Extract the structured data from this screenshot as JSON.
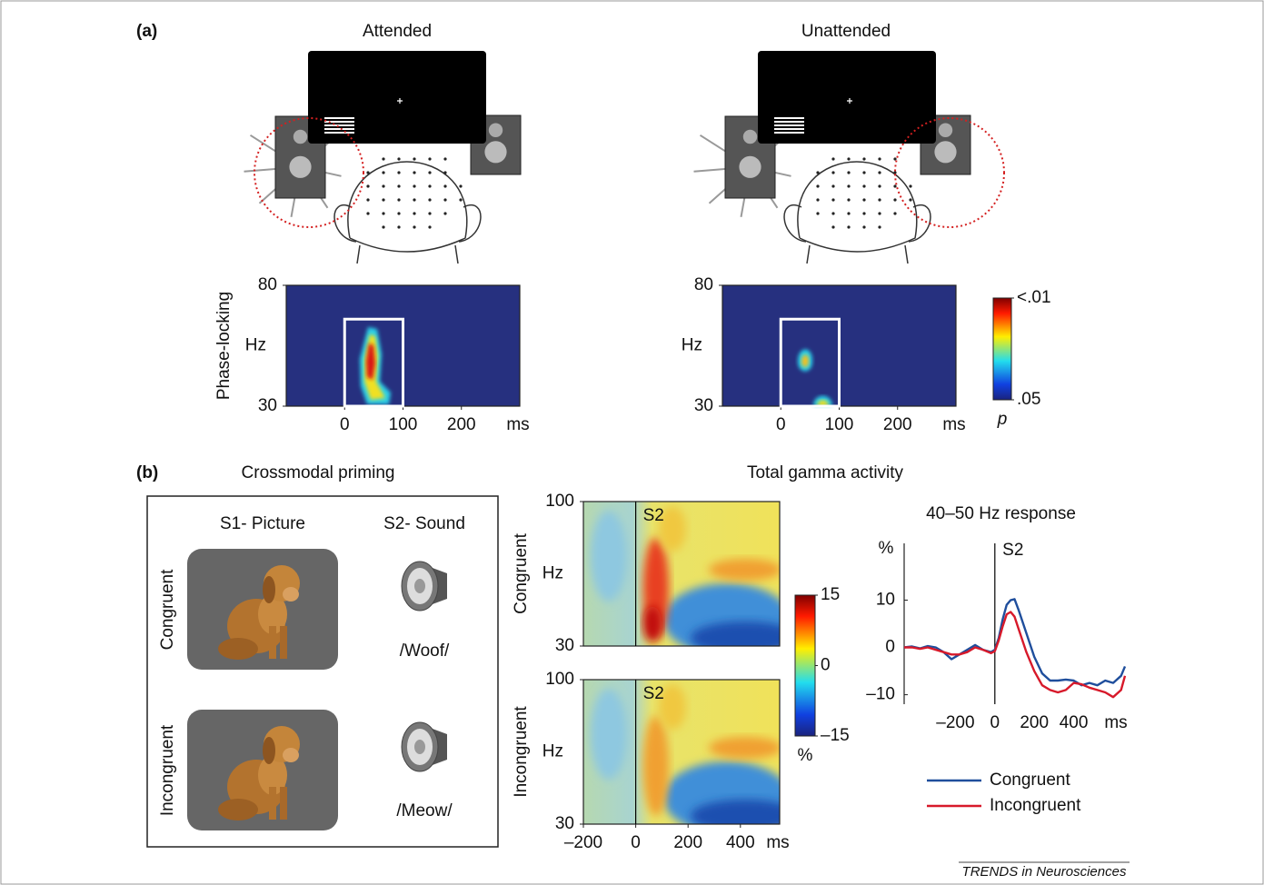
{
  "figure": {
    "panel_a": {
      "label": "(a)",
      "conditions": [
        "Attended",
        "Unattended"
      ]
    },
    "panel_b": {
      "label": "(b)",
      "priming_title": "Crossmodal priming",
      "column_headers": [
        "S1- Picture",
        "S2- Sound"
      ],
      "rows": [
        {
          "label": "Congruent",
          "sound": "/Woof/"
        },
        {
          "label": "Incongruent",
          "sound": "/Meow/"
        }
      ],
      "gamma_title": "Total gamma activity"
    },
    "credit": "TRENDS in Neurosciences"
  },
  "chart_data": [
    {
      "type": "heatmap",
      "side_label": "Phase-locking",
      "ylabel": "Hz",
      "xunit": "ms",
      "xlim": [
        -100,
        300
      ],
      "xticks": [
        0,
        100,
        200
      ],
      "ylim": [
        30,
        80
      ],
      "yticks": [
        30,
        80
      ],
      "window": {
        "x": [
          0,
          100
        ],
        "y": [
          30,
          66
        ]
      }
    },
    {
      "type": "heatmap",
      "ylabel": "Hz",
      "xunit": "ms",
      "xlim": [
        -100,
        300
      ],
      "xticks": [
        0,
        100,
        200
      ],
      "ylim": [
        30,
        80
      ],
      "yticks": [
        30,
        80
      ],
      "window": {
        "x": [
          0,
          100
        ],
        "y": [
          30,
          66
        ]
      }
    },
    {
      "type": "colorbar",
      "colormap": "jet",
      "unit": "p",
      "ylim": [
        0.05,
        0.01
      ],
      "yticks": [
        {
          "value": 0.01,
          "label": "<.01"
        },
        {
          "value": 0.05,
          "label": ".05"
        }
      ]
    },
    {
      "type": "heatmap",
      "side_label": "Congruent",
      "ylabel": "Hz",
      "xlim": [
        -200,
        550
      ],
      "ylim": [
        30,
        100
      ],
      "yticks": [
        30,
        100
      ],
      "annotation": {
        "text": "S2",
        "x": 0
      }
    },
    {
      "type": "heatmap",
      "side_label": "Incongruent",
      "ylabel": "Hz",
      "xunit": "ms",
      "xlim": [
        -200,
        550
      ],
      "xticks": [
        {
          "value": -200,
          "label": "–200"
        },
        0,
        200,
        400
      ],
      "ylim": [
        30,
        100
      ],
      "yticks": [
        30,
        100
      ],
      "annotation": {
        "text": "S2",
        "x": 0
      }
    },
    {
      "type": "colorbar",
      "colormap": "jet",
      "unit": "%",
      "ylim": [
        -15,
        15
      ],
      "yticks": [
        {
          "value": -15,
          "label": "–15"
        },
        0,
        15
      ]
    },
    {
      "type": "line",
      "title": "40–50 Hz response",
      "ylabel": "%",
      "xunit": "ms",
      "annotation": {
        "text": "S2",
        "x": 0
      },
      "xlim": [
        -460,
        660
      ],
      "xticks": [
        {
          "value": -200,
          "label": "–200"
        },
        0,
        200,
        400
      ],
      "ylim": [
        -12,
        22
      ],
      "yticks": [
        {
          "value": -10,
          "label": "–10"
        },
        0,
        10
      ],
      "x": [
        -460,
        -420,
        -380,
        -340,
        -300,
        -260,
        -220,
        -180,
        -140,
        -100,
        -60,
        -20,
        0,
        20,
        40,
        60,
        80,
        100,
        120,
        160,
        200,
        240,
        280,
        320,
        360,
        400,
        440,
        480,
        520,
        560,
        600,
        640,
        660
      ],
      "series": [
        {
          "name": "Congruent",
          "color": "#1f4e9c",
          "values": [
            0,
            0.2,
            -0.2,
            0.3,
            0,
            -1,
            -2.5,
            -1.5,
            -0.5,
            0.5,
            -0.5,
            -1,
            -0.5,
            2,
            6,
            9,
            10,
            10.2,
            8,
            3,
            -2,
            -5.5,
            -7,
            -7,
            -6.8,
            -7,
            -8,
            -7.5,
            -8,
            -7,
            -7.5,
            -6,
            -4
          ]
        },
        {
          "name": "Incongruent",
          "color": "#d7192a",
          "values": [
            0,
            0,
            -0.3,
            0,
            -0.5,
            -1,
            -1.5,
            -1.5,
            -1,
            0,
            -0.5,
            -1.2,
            -0.8,
            1.5,
            4.5,
            7,
            7.5,
            6.5,
            4,
            -1,
            -5,
            -8,
            -9,
            -9.5,
            -9,
            -7.5,
            -7.8,
            -8.5,
            -9,
            -9.5,
            -10.5,
            -9,
            -6
          ]
        }
      ]
    }
  ]
}
